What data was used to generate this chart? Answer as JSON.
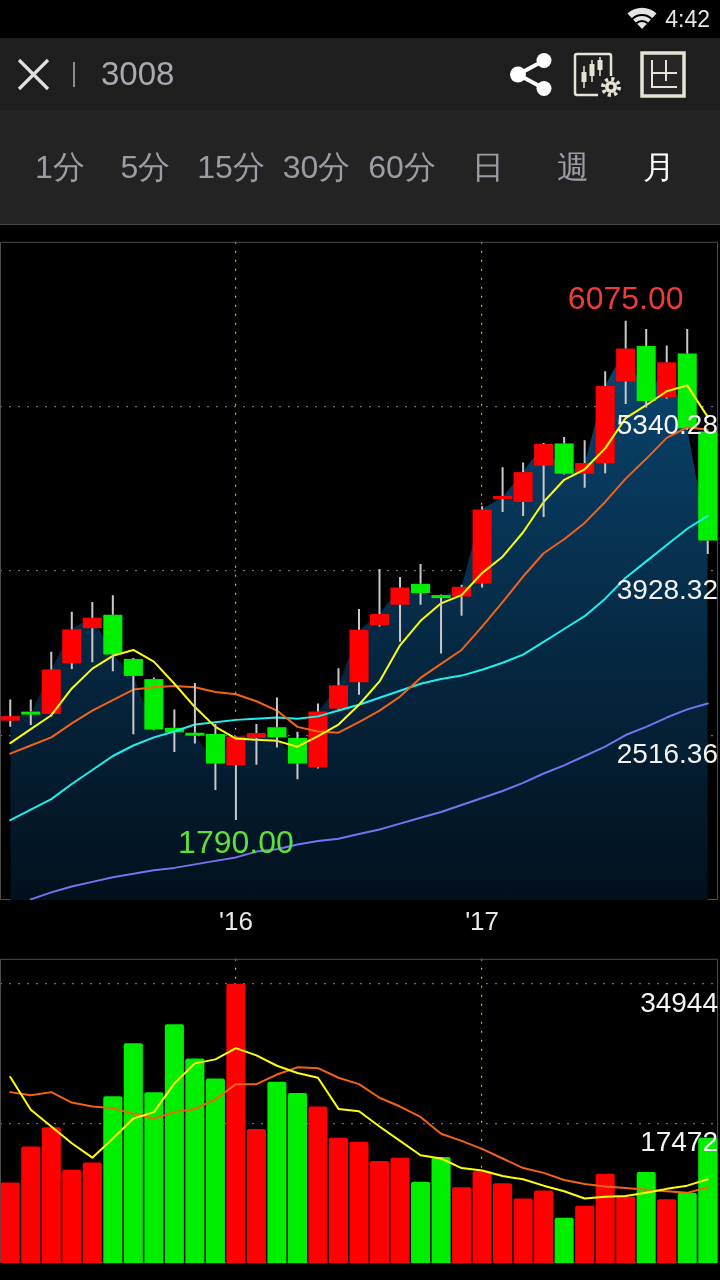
{
  "chart_data": [
    {
      "type": "other",
      "title": "3008",
      "annotations": [
        "4:42",
        "1分",
        "5分",
        "15分",
        "30分",
        "60分",
        "日",
        "週",
        "月"
      ]
    },
    {
      "type": "candlestick",
      "categories": [
        null,
        null,
        null,
        null,
        null,
        null,
        null,
        null,
        null,
        null,
        null,
        "'16",
        null,
        null,
        null,
        null,
        null,
        null,
        null,
        null,
        null,
        null,
        null,
        "'17",
        null,
        null,
        null,
        null,
        null,
        null,
        null,
        null,
        null,
        null,
        null
      ],
      "ohlc": [
        [
          2643,
          2824,
          2592,
          2682
        ],
        [
          2715,
          2824,
          2607,
          2701
        ],
        [
          2701,
          3234,
          2676,
          3083
        ],
        [
          3136,
          3577,
          3086,
          3426
        ],
        [
          3437,
          3661,
          3145,
          3527
        ],
        [
          3552,
          3719,
          3067,
          3211
        ],
        [
          3173,
          3180,
          2526,
          3027
        ],
        [
          3000,
          3014,
          2560,
          2567
        ],
        [
          2582,
          2738,
          2375,
          2542
        ],
        [
          2537,
          2966,
          2448,
          2517
        ],
        [
          2529,
          2615,
          2049,
          2275
        ],
        [
          2260,
          2510,
          1790,
          2506
        ],
        [
          2495,
          2615,
          2266,
          2537
        ],
        [
          2587,
          2843,
          2414,
          2500
        ],
        [
          2495,
          2548,
          2141,
          2275
        ],
        [
          2244,
          2791,
          2233,
          2721
        ],
        [
          2746,
          3092,
          2740,
          2947
        ],
        [
          2972,
          3602,
          2866,
          3424
        ],
        [
          3462,
          3945,
          3452,
          3558
        ],
        [
          3638,
          3876,
          3320,
          3786
        ],
        [
          3817,
          3987,
          3638,
          3738
        ],
        [
          3719,
          3725,
          3220,
          3697
        ],
        [
          3708,
          3809,
          3544,
          3792
        ],
        [
          3820,
          4483,
          3786,
          4455
        ],
        [
          4555,
          4818,
          4433,
          4562
        ],
        [
          4520,
          4859,
          4399,
          4776
        ],
        [
          4832,
          5025,
          4391,
          5018
        ],
        [
          5022,
          5077,
          4755,
          4762
        ],
        [
          4762,
          5049,
          4642,
          4854
        ],
        [
          4851,
          5641,
          4767,
          5515
        ],
        [
          5554,
          6075,
          5361,
          5836
        ],
        [
          5858,
          6003,
          5330,
          5386
        ],
        [
          5417,
          5863,
          5405,
          5718
        ],
        [
          5794,
          6003,
          5140,
          5152
        ],
        [
          5125,
          5130,
          4073,
          4190
        ]
      ],
      "colors": [
        "#ff0000",
        "#00ee00",
        "#ff0000",
        "#ff0000",
        "#ff0000",
        "#00ee00",
        "#00ee00",
        "#00ee00",
        "#00ee00",
        "#00ee00",
        "#00ee00",
        "#ff0000",
        "#ff0000",
        "#00ee00",
        "#00ee00",
        "#ff0000",
        "#ff0000",
        "#ff0000",
        "#ff0000",
        "#ff0000",
        "#00ee00",
        "#00ee00",
        "#ff0000",
        "#ff0000",
        "#ff0000",
        "#ff0000",
        "#ff0000",
        "#00ee00",
        "#ff0000",
        "#ff0000",
        "#ff0000",
        "#00ee00",
        "#ff0000",
        "#00ee00",
        "#00ee00"
      ],
      "ylim": [
        1104.4,
        6752.24
      ],
      "yticks": [
        2516.36,
        3928.32,
        5340.28
      ],
      "grid": true,
      "annotations": [
        "6075.00",
        "1790.00"
      ],
      "series": [
        {
          "type": "area",
          "color": "#0b4f80",
          "values": [
            2680,
            2700,
            3080,
            3430,
            3530,
            3210,
            3030,
            2570,
            2540,
            2520,
            2280,
            2510,
            2540,
            2500,
            2280,
            2720,
            2950,
            3420,
            3560,
            3790,
            3740,
            3700,
            3790,
            4460,
            4560,
            4780,
            5020,
            4760,
            4850,
            5520,
            5840,
            5390,
            5720,
            5150,
            4190
          ]
        },
        {
          "type": "line",
          "color": "#ffff00",
          "values": [
            2450,
            2570,
            2690,
            2920,
            3090,
            3200,
            3250,
            3150,
            2960,
            2760,
            2590,
            2490,
            2480,
            2470,
            2420,
            2510,
            2610,
            2780,
            2980,
            3290,
            3500,
            3650,
            3720,
            3910,
            4050,
            4260,
            4520,
            4710,
            4800,
            4980,
            5240,
            5350,
            5470,
            5520,
            5250
          ]
        },
        {
          "type": "line",
          "color": "#f06414",
          "values": [
            2360,
            2430,
            2500,
            2620,
            2730,
            2820,
            2910,
            2930,
            2940,
            2930,
            2890,
            2870,
            2810,
            2730,
            2590,
            2550,
            2540,
            2630,
            2730,
            2850,
            3010,
            3130,
            3250,
            3450,
            3660,
            3880,
            4080,
            4200,
            4340,
            4520,
            4720,
            4890,
            5070,
            5160,
            5140
          ]
        },
        {
          "type": "line",
          "color": "#1ef0f0",
          "values": [
            1790,
            1880,
            1970,
            2100,
            2220,
            2340,
            2430,
            2500,
            2550,
            2610,
            2630,
            2650,
            2660,
            2670,
            2660,
            2680,
            2730,
            2780,
            2840,
            2900,
            2960,
            3000,
            3030,
            3080,
            3140,
            3210,
            3320,
            3430,
            3540,
            3690,
            3870,
            4010,
            4150,
            4290,
            4400
          ]
        },
        {
          "type": "line",
          "color": "#7474f0",
          "values": [
            null,
            1110,
            1170,
            1220,
            1260,
            1300,
            1330,
            1360,
            1380,
            1410,
            1440,
            1470,
            1520,
            1540,
            1580,
            1610,
            1630,
            1670,
            1710,
            1760,
            1810,
            1860,
            1920,
            1980,
            2040,
            2110,
            2190,
            2260,
            2340,
            2420,
            2520,
            2590,
            2670,
            2740,
            2790
          ]
        }
      ]
    },
    {
      "type": "bar",
      "categories": [
        null,
        null,
        null,
        null,
        null,
        null,
        null,
        null,
        null,
        null,
        null,
        null,
        null,
        null,
        null,
        null,
        null,
        null,
        null,
        null,
        null,
        null,
        null,
        null,
        null,
        null,
        null,
        null,
        null,
        null,
        null,
        null,
        null,
        null,
        null
      ],
      "tick_labels": "y",
      "ylim": [
        0,
        38080
      ],
      "yticks": [
        17472,
        34944
      ],
      "grid": true,
      "series": [
        {
          "type": "bar",
          "colors": [
            "#ff0000",
            "#ff0000",
            "#ff0000",
            "#ff0000",
            "#ff0000",
            "#00ee00",
            "#00ee00",
            "#00ee00",
            "#00ee00",
            "#00ee00",
            "#00ee00",
            "#ff0000",
            "#ff0000",
            "#00ee00",
            "#00ee00",
            "#ff0000",
            "#ff0000",
            "#ff0000",
            "#ff0000",
            "#ff0000",
            "#00ee00",
            "#00ee00",
            "#ff0000",
            "#ff0000",
            "#ff0000",
            "#ff0000",
            "#ff0000",
            "#00ee00",
            "#ff0000",
            "#ff0000",
            "#ff0000",
            "#00ee00",
            "#ff0000",
            "#00ee00",
            "#00ee00"
          ],
          "values": [
            10100,
            14600,
            17000,
            11700,
            12600,
            20900,
            27500,
            21400,
            29900,
            25600,
            23100,
            34944,
            16800,
            22700,
            21300,
            19600,
            15700,
            15200,
            12800,
            13200,
            10200,
            13300,
            9500,
            11500,
            10000,
            8100,
            9100,
            5700,
            7200,
            11200,
            8300,
            11400,
            8000,
            8800,
            15700
          ]
        },
        {
          "type": "line",
          "color": "#ffff00",
          "values": [
            23300,
            19200,
            17100,
            15000,
            13200,
            15600,
            18100,
            18900,
            22500,
            25000,
            25500,
            26900,
            26000,
            24700,
            23800,
            23200,
            19300,
            19000,
            17100,
            15300,
            13500,
            13100,
            11900,
            11600,
            10900,
            10500,
            9700,
            9000,
            8100,
            8300,
            8400,
            8800,
            9300,
            9700,
            10500
          ]
        },
        {
          "type": "line",
          "color": "#f06414",
          "values": [
            21400,
            21000,
            21400,
            20100,
            19600,
            19400,
            18700,
            18100,
            18900,
            19300,
            20500,
            22400,
            22400,
            23600,
            24500,
            24400,
            23200,
            22400,
            20700,
            19600,
            18300,
            16200,
            15300,
            14300,
            13100,
            11900,
            11300,
            10400,
            9900,
            9600,
            9400,
            9200,
            9000,
            8800,
            9500
          ]
        }
      ]
    }
  ]
}
